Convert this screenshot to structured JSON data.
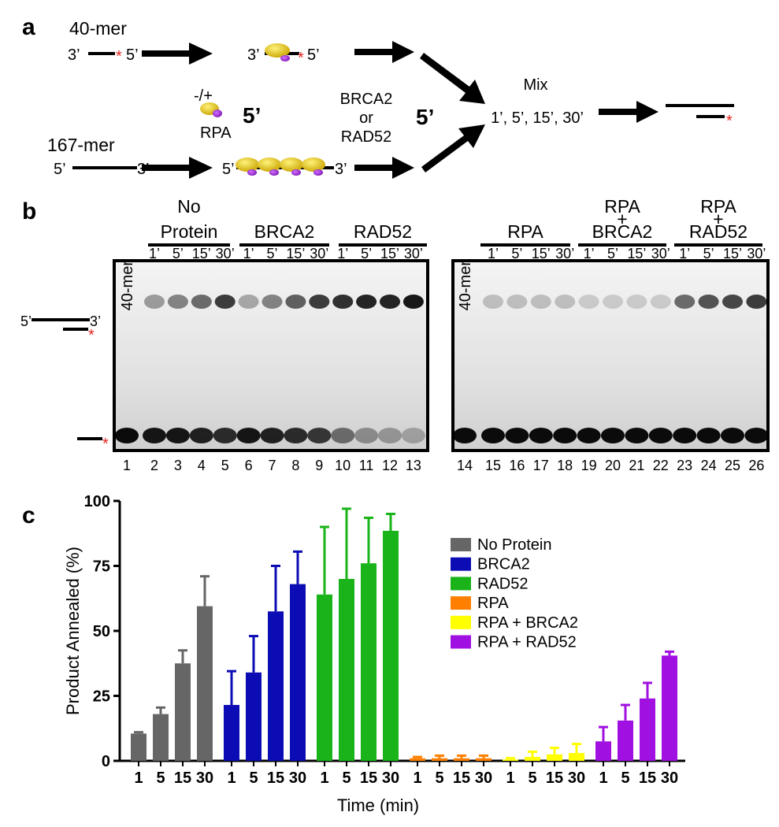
{
  "panel_a": {
    "label": "a",
    "marker": "*",
    "top": {
      "name": "40-mer",
      "left_end": "3’",
      "right_end": "5’"
    },
    "rpa": {
      "toggle": "-/+",
      "name": "RPA"
    },
    "bottom": {
      "name": "167-mer",
      "left_end": "5’",
      "right_end": "3’"
    },
    "mediator": [
      "BRCA2",
      "or",
      "RAD52"
    ],
    "end_label": "5’",
    "mix": {
      "title": "Mix",
      "times": "1’, 5’, 15’, 30’"
    }
  },
  "panel_b": {
    "label": "b",
    "marker": "*",
    "strand_ends": [
      "5’",
      "3’"
    ],
    "left": {
      "lane_label": "40-mer",
      "groups": [
        [
          "No",
          "Protein"
        ],
        [
          "BRCA2"
        ],
        [
          "RAD52"
        ]
      ],
      "times": [
        "1’",
        "5’",
        "15’",
        "30’"
      ],
      "lanes": [
        1,
        2,
        3,
        4,
        5,
        6,
        7,
        8,
        9,
        10,
        11,
        12,
        13
      ]
    },
    "right": {
      "lane_label": "40-mer",
      "groups": [
        [
          "RPA"
        ],
        [
          "RPA",
          "+",
          "BRCA2"
        ],
        [
          "RPA",
          "+",
          "RAD52"
        ]
      ],
      "times": [
        "1’",
        "5’",
        "15’",
        "30’"
      ],
      "lanes": [
        14,
        15,
        16,
        17,
        18,
        19,
        20,
        21,
        22,
        23,
        24,
        25,
        26
      ]
    }
  },
  "panel_c": {
    "label": "c"
  },
  "chart_data": {
    "type": "bar",
    "y_label": "Product Annealed (%)",
    "x_label": "Time (min)",
    "categories": [
      "1",
      "5",
      "15",
      "30"
    ],
    "ylim": [
      0,
      100
    ],
    "yticks": [
      0,
      25,
      50,
      75,
      100
    ],
    "grid": false,
    "series": [
      {
        "name": "No Protein",
        "color": "#666666",
        "values": [
          10.5,
          18,
          37.5,
          59.5
        ],
        "errors": [
          0.5,
          2.5,
          5,
          11.5
        ]
      },
      {
        "name": "BRCA2",
        "color": "#0c0cb4",
        "values": [
          21.5,
          34,
          57.5,
          68
        ],
        "errors": [
          13,
          14,
          17.5,
          12.5
        ]
      },
      {
        "name": "RAD52",
        "color": "#1ab41a",
        "values": [
          64,
          70,
          76,
          88.5
        ],
        "errors": [
          26,
          27,
          17.5,
          6.5
        ]
      },
      {
        "name": "RPA",
        "color": "#ff8000",
        "values": [
          1,
          1,
          1,
          1
        ],
        "errors": [
          0.5,
          1,
          1,
          1
        ]
      },
      {
        "name": "RPA + BRCA2",
        "color": "#ffff00",
        "values": [
          0.5,
          1.5,
          2.5,
          3
        ],
        "errors": [
          0.5,
          2,
          2.5,
          3.5
        ]
      },
      {
        "name": "RPA + RAD52",
        "color": "#a010e0",
        "values": [
          7.5,
          15.5,
          24,
          40.5
        ],
        "errors": [
          5.5,
          6,
          6,
          1.5
        ]
      }
    ]
  }
}
